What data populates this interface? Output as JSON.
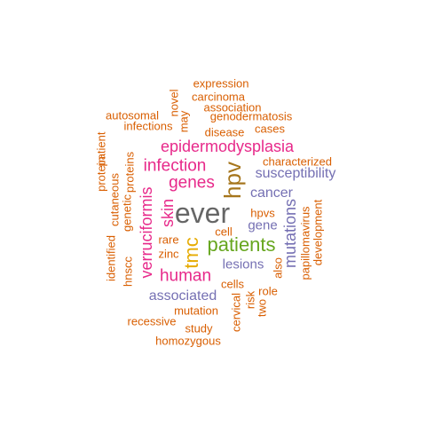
{
  "colors": {
    "orange": "#d95f02",
    "purple": "#7570b3",
    "magenta": "#e7298a",
    "green": "#66a61e",
    "gold": "#e6ab02",
    "brown": "#a6761d",
    "gray": "#666666"
  },
  "words": [
    {
      "text": "ever",
      "color": "gray"
    },
    {
      "text": "patients",
      "color": "green"
    },
    {
      "text": "hpv",
      "color": "brown"
    },
    {
      "text": "tmc",
      "color": "gold"
    },
    {
      "text": "epidermodysplasia",
      "color": "magenta"
    },
    {
      "text": "verruciformis",
      "color": "magenta"
    },
    {
      "text": "infection",
      "color": "magenta"
    },
    {
      "text": "genes",
      "color": "magenta"
    },
    {
      "text": "human",
      "color": "magenta"
    },
    {
      "text": "skin",
      "color": "magenta"
    },
    {
      "text": "mutations",
      "color": "purple"
    },
    {
      "text": "susceptibility",
      "color": "purple"
    },
    {
      "text": "cancer",
      "color": "purple"
    },
    {
      "text": "associated",
      "color": "purple"
    },
    {
      "text": "lesions",
      "color": "purple"
    },
    {
      "text": "gene",
      "color": "purple"
    },
    {
      "text": "expression",
      "color": "orange"
    },
    {
      "text": "carcinoma",
      "color": "orange"
    },
    {
      "text": "association",
      "color": "orange"
    },
    {
      "text": "genodermatosis",
      "color": "orange"
    },
    {
      "text": "autosomal",
      "color": "orange"
    },
    {
      "text": "infections",
      "color": "orange"
    },
    {
      "text": "disease",
      "color": "orange"
    },
    {
      "text": "cases",
      "color": "orange"
    },
    {
      "text": "novel",
      "color": "orange"
    },
    {
      "text": "may",
      "color": "orange"
    },
    {
      "text": "characterized",
      "color": "orange"
    },
    {
      "text": "protein",
      "color": "orange"
    },
    {
      "text": "patient",
      "color": "orange"
    },
    {
      "text": "cutaneous",
      "color": "orange"
    },
    {
      "text": "genetic",
      "color": "orange"
    },
    {
      "text": "proteins",
      "color": "orange"
    },
    {
      "text": "identified",
      "color": "orange"
    },
    {
      "text": "hnscc",
      "color": "orange"
    },
    {
      "text": "hpvs",
      "color": "orange"
    },
    {
      "text": "cell",
      "color": "orange"
    },
    {
      "text": "rare",
      "color": "orange"
    },
    {
      "text": "zinc",
      "color": "orange"
    },
    {
      "text": "papillomavirus",
      "color": "orange"
    },
    {
      "text": "development",
      "color": "orange"
    },
    {
      "text": "also",
      "color": "orange"
    },
    {
      "text": "cells",
      "color": "orange"
    },
    {
      "text": "role",
      "color": "orange"
    },
    {
      "text": "risk",
      "color": "orange"
    },
    {
      "text": "two",
      "color": "orange"
    },
    {
      "text": "cervical",
      "color": "orange"
    },
    {
      "text": "mutation",
      "color": "orange"
    },
    {
      "text": "recessive",
      "color": "orange"
    },
    {
      "text": "study",
      "color": "orange"
    },
    {
      "text": "homozygous",
      "color": "orange"
    }
  ]
}
